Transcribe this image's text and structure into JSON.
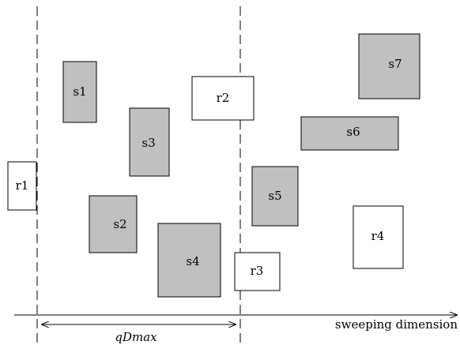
{
  "diagram": {
    "boxes": [
      {
        "id": "r1",
        "label": "r1",
        "shaded": false
      },
      {
        "id": "s1",
        "label": "s1",
        "shaded": true
      },
      {
        "id": "s2",
        "label": "s2",
        "shaded": true
      },
      {
        "id": "s3",
        "label": "s3",
        "shaded": true
      },
      {
        "id": "s4",
        "label": "s4",
        "shaded": true
      },
      {
        "id": "r2",
        "label": "r2",
        "shaded": false
      },
      {
        "id": "s5",
        "label": "s5",
        "shaded": true
      },
      {
        "id": "r3",
        "label": "r3",
        "shaded": false
      },
      {
        "id": "s6",
        "label": "s6",
        "shaded": true
      },
      {
        "id": "s7",
        "label": "s7",
        "shaded": true
      },
      {
        "id": "r4",
        "label": "r4",
        "shaded": false
      }
    ],
    "axis_label": "sweeping dimension",
    "window_label": "qDmax",
    "colors": {
      "shaded_fill": "#c0c0c0",
      "stroke": "#000000"
    }
  }
}
